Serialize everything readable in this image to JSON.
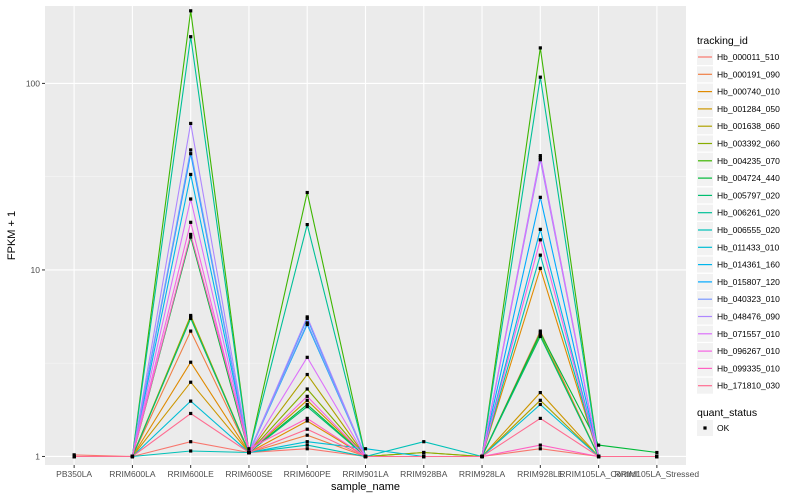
{
  "chart_data": {
    "type": "line",
    "ylabel": "FPKM + 1",
    "xlabel": "sample_name",
    "y_scale": "log10",
    "ylim": [
      0.9,
      260
    ],
    "y_ticks": [
      1,
      10,
      100
    ],
    "grid": true,
    "legend_position": "right",
    "categories": [
      "PB350LA",
      "RRIM600LA",
      "RRIM600LE",
      "RRIM600SE",
      "RRIM600PE",
      "RRIM901LA",
      "RRIM928BA",
      "RRIM928LA",
      "RRIM928LE",
      "RRIM105LA_Control",
      "RRIM105LA_Stressed"
    ],
    "series_title": "tracking_id",
    "series": [
      {
        "name": "Hb_000011_510",
        "color": "#F8766D",
        "values": [
          1.02,
          1.0,
          1.2,
          1.05,
          1.1,
          1.0,
          1.0,
          1.0,
          1.1,
          1.0,
          1.0
        ]
      },
      {
        "name": "Hb_000191_090",
        "color": "#EF7F45",
        "values": [
          1.0,
          1.0,
          4.7,
          1.05,
          1.3,
          1.0,
          1.0,
          1.0,
          4.7,
          1.0,
          1.0
        ]
      },
      {
        "name": "Hb_000740_010",
        "color": "#E08A00",
        "values": [
          1.0,
          1.0,
          3.2,
          1.05,
          1.55,
          1.0,
          1.0,
          1.0,
          10.2,
          1.0,
          1.0
        ]
      },
      {
        "name": "Hb_001284_050",
        "color": "#CC9600",
        "values": [
          1.0,
          1.0,
          2.5,
          1.05,
          2.0,
          1.0,
          1.0,
          1.0,
          2.2,
          1.0,
          1.0
        ]
      },
      {
        "name": "Hb_001638_060",
        "color": "#AFA100",
        "values": [
          1.0,
          1.0,
          5.7,
          1.05,
          2.75,
          1.0,
          1.05,
          1.0,
          2.0,
          1.0,
          1.0
        ]
      },
      {
        "name": "Hb_003392_060",
        "color": "#87AC00",
        "values": [
          1.0,
          1.0,
          5.6,
          1.05,
          2.3,
          1.0,
          1.05,
          1.0,
          4.5,
          1.0,
          1.0
        ]
      },
      {
        "name": "Hb_004235_070",
        "color": "#3DB600",
        "values": [
          1.0,
          1.0,
          245,
          1.05,
          26,
          1.0,
          1.0,
          1.0,
          155,
          1.0,
          1.0
        ]
      },
      {
        "name": "Hb_004724_440",
        "color": "#00BA38",
        "values": [
          1.0,
          1.0,
          15.0,
          1.05,
          1.9,
          1.0,
          1.0,
          1.0,
          4.6,
          1.15,
          1.05
        ]
      },
      {
        "name": "Hb_005797_020",
        "color": "#00BE70",
        "values": [
          1.0,
          1.0,
          5.5,
          1.05,
          1.85,
          1.0,
          1.0,
          1.0,
          4.4,
          1.0,
          1.0
        ]
      },
      {
        "name": "Hb_006261_020",
        "color": "#00C097",
        "values": [
          1.0,
          1.0,
          178,
          1.05,
          17.5,
          1.0,
          1.0,
          1.0,
          108,
          1.0,
          1.0
        ]
      },
      {
        "name": "Hb_006555_020",
        "color": "#00C1B8",
        "values": [
          1.0,
          1.0,
          1.07,
          1.05,
          1.15,
          1.0,
          1.2,
          1.0,
          12.0,
          1.0,
          1.0
        ]
      },
      {
        "name": "Hb_011433_010",
        "color": "#00BDD4",
        "values": [
          1.0,
          1.0,
          1.98,
          1.05,
          1.2,
          1.1,
          1.0,
          1.0,
          1.9,
          1.0,
          1.0
        ]
      },
      {
        "name": "Hb_014361_160",
        "color": "#00B5EC",
        "values": [
          1.0,
          1.0,
          32.5,
          1.05,
          5.1,
          1.0,
          1.0,
          1.0,
          16.5,
          1.0,
          1.0
        ]
      },
      {
        "name": "Hb_015807_120",
        "color": "#00A9FF",
        "values": [
          1.0,
          1.0,
          42.0,
          1.05,
          5.5,
          1.0,
          1.0,
          1.0,
          24.5,
          1.0,
          1.0
        ]
      },
      {
        "name": "Hb_040323_010",
        "color": "#7997FF",
        "values": [
          1.0,
          1.0,
          44.0,
          1.05,
          5.2,
          1.0,
          1.0,
          1.0,
          39.0,
          1.0,
          1.0
        ]
      },
      {
        "name": "Hb_048476_090",
        "color": "#AE87FF",
        "values": [
          1.0,
          1.0,
          61,
          1.05,
          5.6,
          1.0,
          1.0,
          1.0,
          41,
          1.0,
          1.0
        ]
      },
      {
        "name": "Hb_071557_010",
        "color": "#DC71FA",
        "values": [
          1.0,
          1.0,
          24.0,
          1.05,
          3.4,
          1.0,
          1.0,
          1.0,
          40,
          1.0,
          1.0
        ]
      },
      {
        "name": "Hb_096267_010",
        "color": "#F564E3",
        "values": [
          1.0,
          1.0,
          18.0,
          1.05,
          2.1,
          1.0,
          1.0,
          1.0,
          14.5,
          1.0,
          1.0
        ]
      },
      {
        "name": "Hb_099335_010",
        "color": "#FF61C3",
        "values": [
          1.0,
          1.0,
          15.5,
          1.1,
          1.6,
          1.0,
          1.0,
          1.0,
          1.15,
          1.0,
          1.0
        ]
      },
      {
        "name": "Hb_171810_030",
        "color": "#FF6C91",
        "values": [
          1.0,
          1.0,
          1.7,
          1.05,
          1.4,
          1.0,
          1.0,
          1.0,
          1.6,
          1.0,
          1.0
        ]
      }
    ],
    "point_legend_title": "quant_status",
    "point_legend_items": [
      "OK"
    ]
  }
}
